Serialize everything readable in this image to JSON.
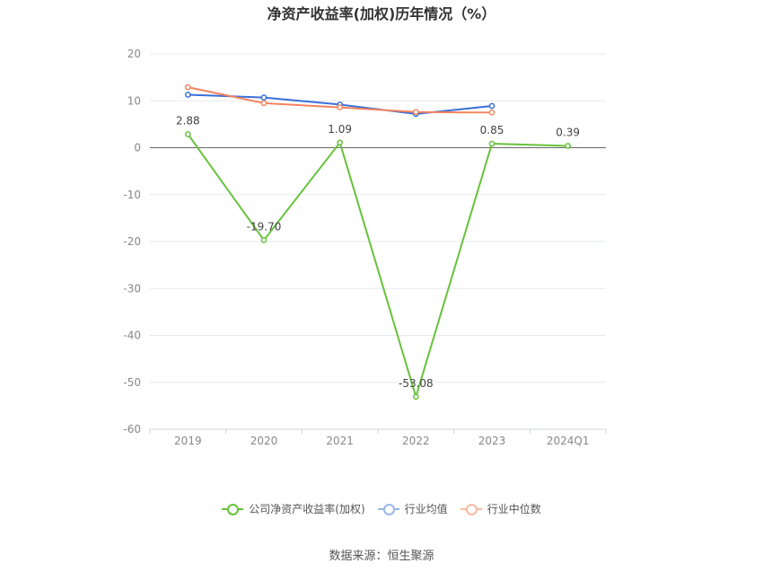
{
  "title": "净资产收益率(加权)历年情况（%）",
  "source": "数据来源：恒生聚源",
  "chart_data": {
    "type": "line",
    "categories": [
      "2019",
      "2020",
      "2021",
      "2022",
      "2023",
      "2024Q1"
    ],
    "ylim": [
      -60,
      20
    ],
    "yticks": [
      20,
      10,
      0,
      -10,
      -20,
      -30,
      -40,
      -50,
      -60
    ],
    "grid": true,
    "legend_position": "bottom",
    "series": [
      {
        "name": "公司净资产收益率(加权)",
        "color": "#67c23a",
        "values": [
          2.88,
          -19.7,
          1.09,
          -53.08,
          0.85,
          0.39
        ],
        "labels": [
          "2.88",
          "-19.70",
          "1.09",
          "-53.08",
          "0.85",
          "0.39"
        ]
      },
      {
        "name": "行业均值",
        "color": "#3a6fd8",
        "values": [
          11.3,
          10.7,
          9.2,
          7.2,
          8.9,
          null
        ]
      },
      {
        "name": "行业中位数",
        "color": "#f4845f",
        "values": [
          12.9,
          9.5,
          8.6,
          7.6,
          7.5,
          null
        ]
      }
    ]
  }
}
